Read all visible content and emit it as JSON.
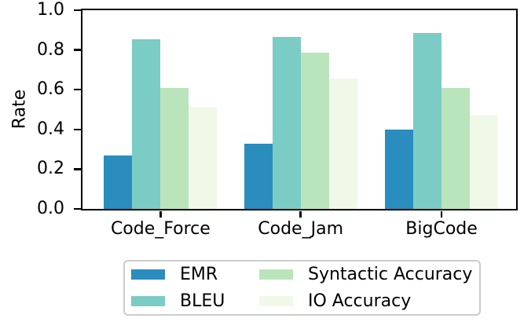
{
  "chart_data": {
    "type": "bar",
    "title": "",
    "xlabel": "",
    "ylabel": "Rate",
    "categories": [
      "Code_Force",
      "Code_Jam",
      "BigCode"
    ],
    "series": [
      {
        "name": "EMR",
        "color": "#2b8cbe",
        "values": [
          0.27,
          0.33,
          0.4
        ]
      },
      {
        "name": "BLEU",
        "color": "#7bccc4",
        "values": [
          0.855,
          0.865,
          0.885
        ]
      },
      {
        "name": "Syntactic Accuracy",
        "color": "#bae4bc",
        "values": [
          0.61,
          0.785,
          0.61
        ]
      },
      {
        "name": "IO Accuracy",
        "color": "#f0f9e8",
        "values": [
          0.515,
          0.655,
          0.47
        ]
      }
    ],
    "ylim": [
      0.0,
      1.0
    ],
    "yticks": [
      "0.0",
      "0.2",
      "0.4",
      "0.6",
      "0.8",
      "1.0"
    ],
    "grid": false,
    "legend": {
      "position": "bottom",
      "columns": 2,
      "order": "column-major"
    },
    "axis_color": "#000000",
    "text_color": "#000000",
    "background": "#ffffff"
  }
}
